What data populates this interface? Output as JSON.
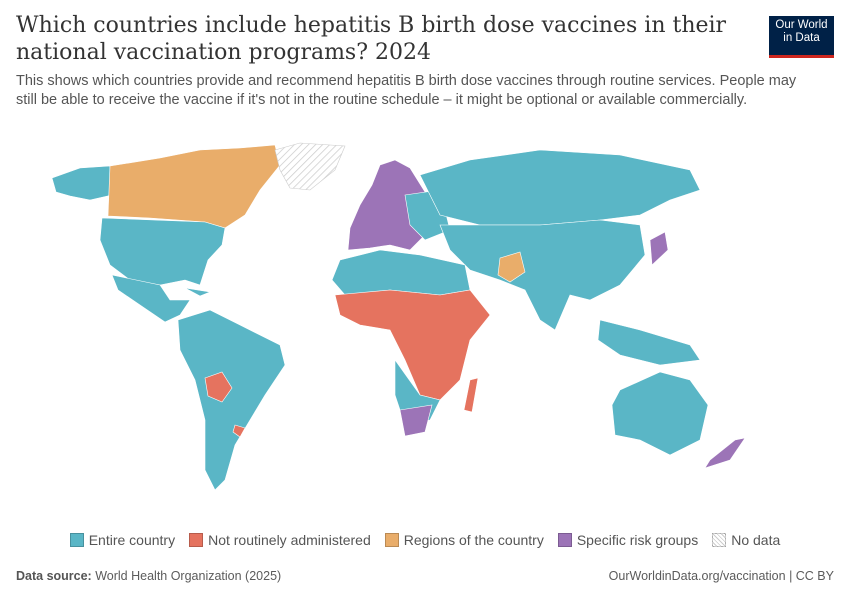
{
  "title": "Which countries include hepatitis B birth dose vaccines in their national vaccination programs? 2024",
  "subtitle": "This shows which countries provide and recommend hepatitis B birth dose vaccines through routine services. People may still be able to receive the vaccine if it's not in the routine schedule – it might be optional or available commercially.",
  "logo": {
    "line1": "Our World",
    "line2": "in Data"
  },
  "legend": [
    {
      "label": "Entire country",
      "color": "#5ab6c6"
    },
    {
      "label": "Not routinely administered",
      "color": "#e5735f"
    },
    {
      "label": "Regions of the country",
      "color": "#e9ad6a"
    },
    {
      "label": "Specific risk groups",
      "color": "#9c74b7"
    },
    {
      "label": "No data",
      "color": "hatched"
    }
  ],
  "footer": {
    "source_label": "Data source:",
    "source": "World Health Organization (2025)",
    "url": "OurWorldinData.org/vaccination | CC BY"
  }
}
